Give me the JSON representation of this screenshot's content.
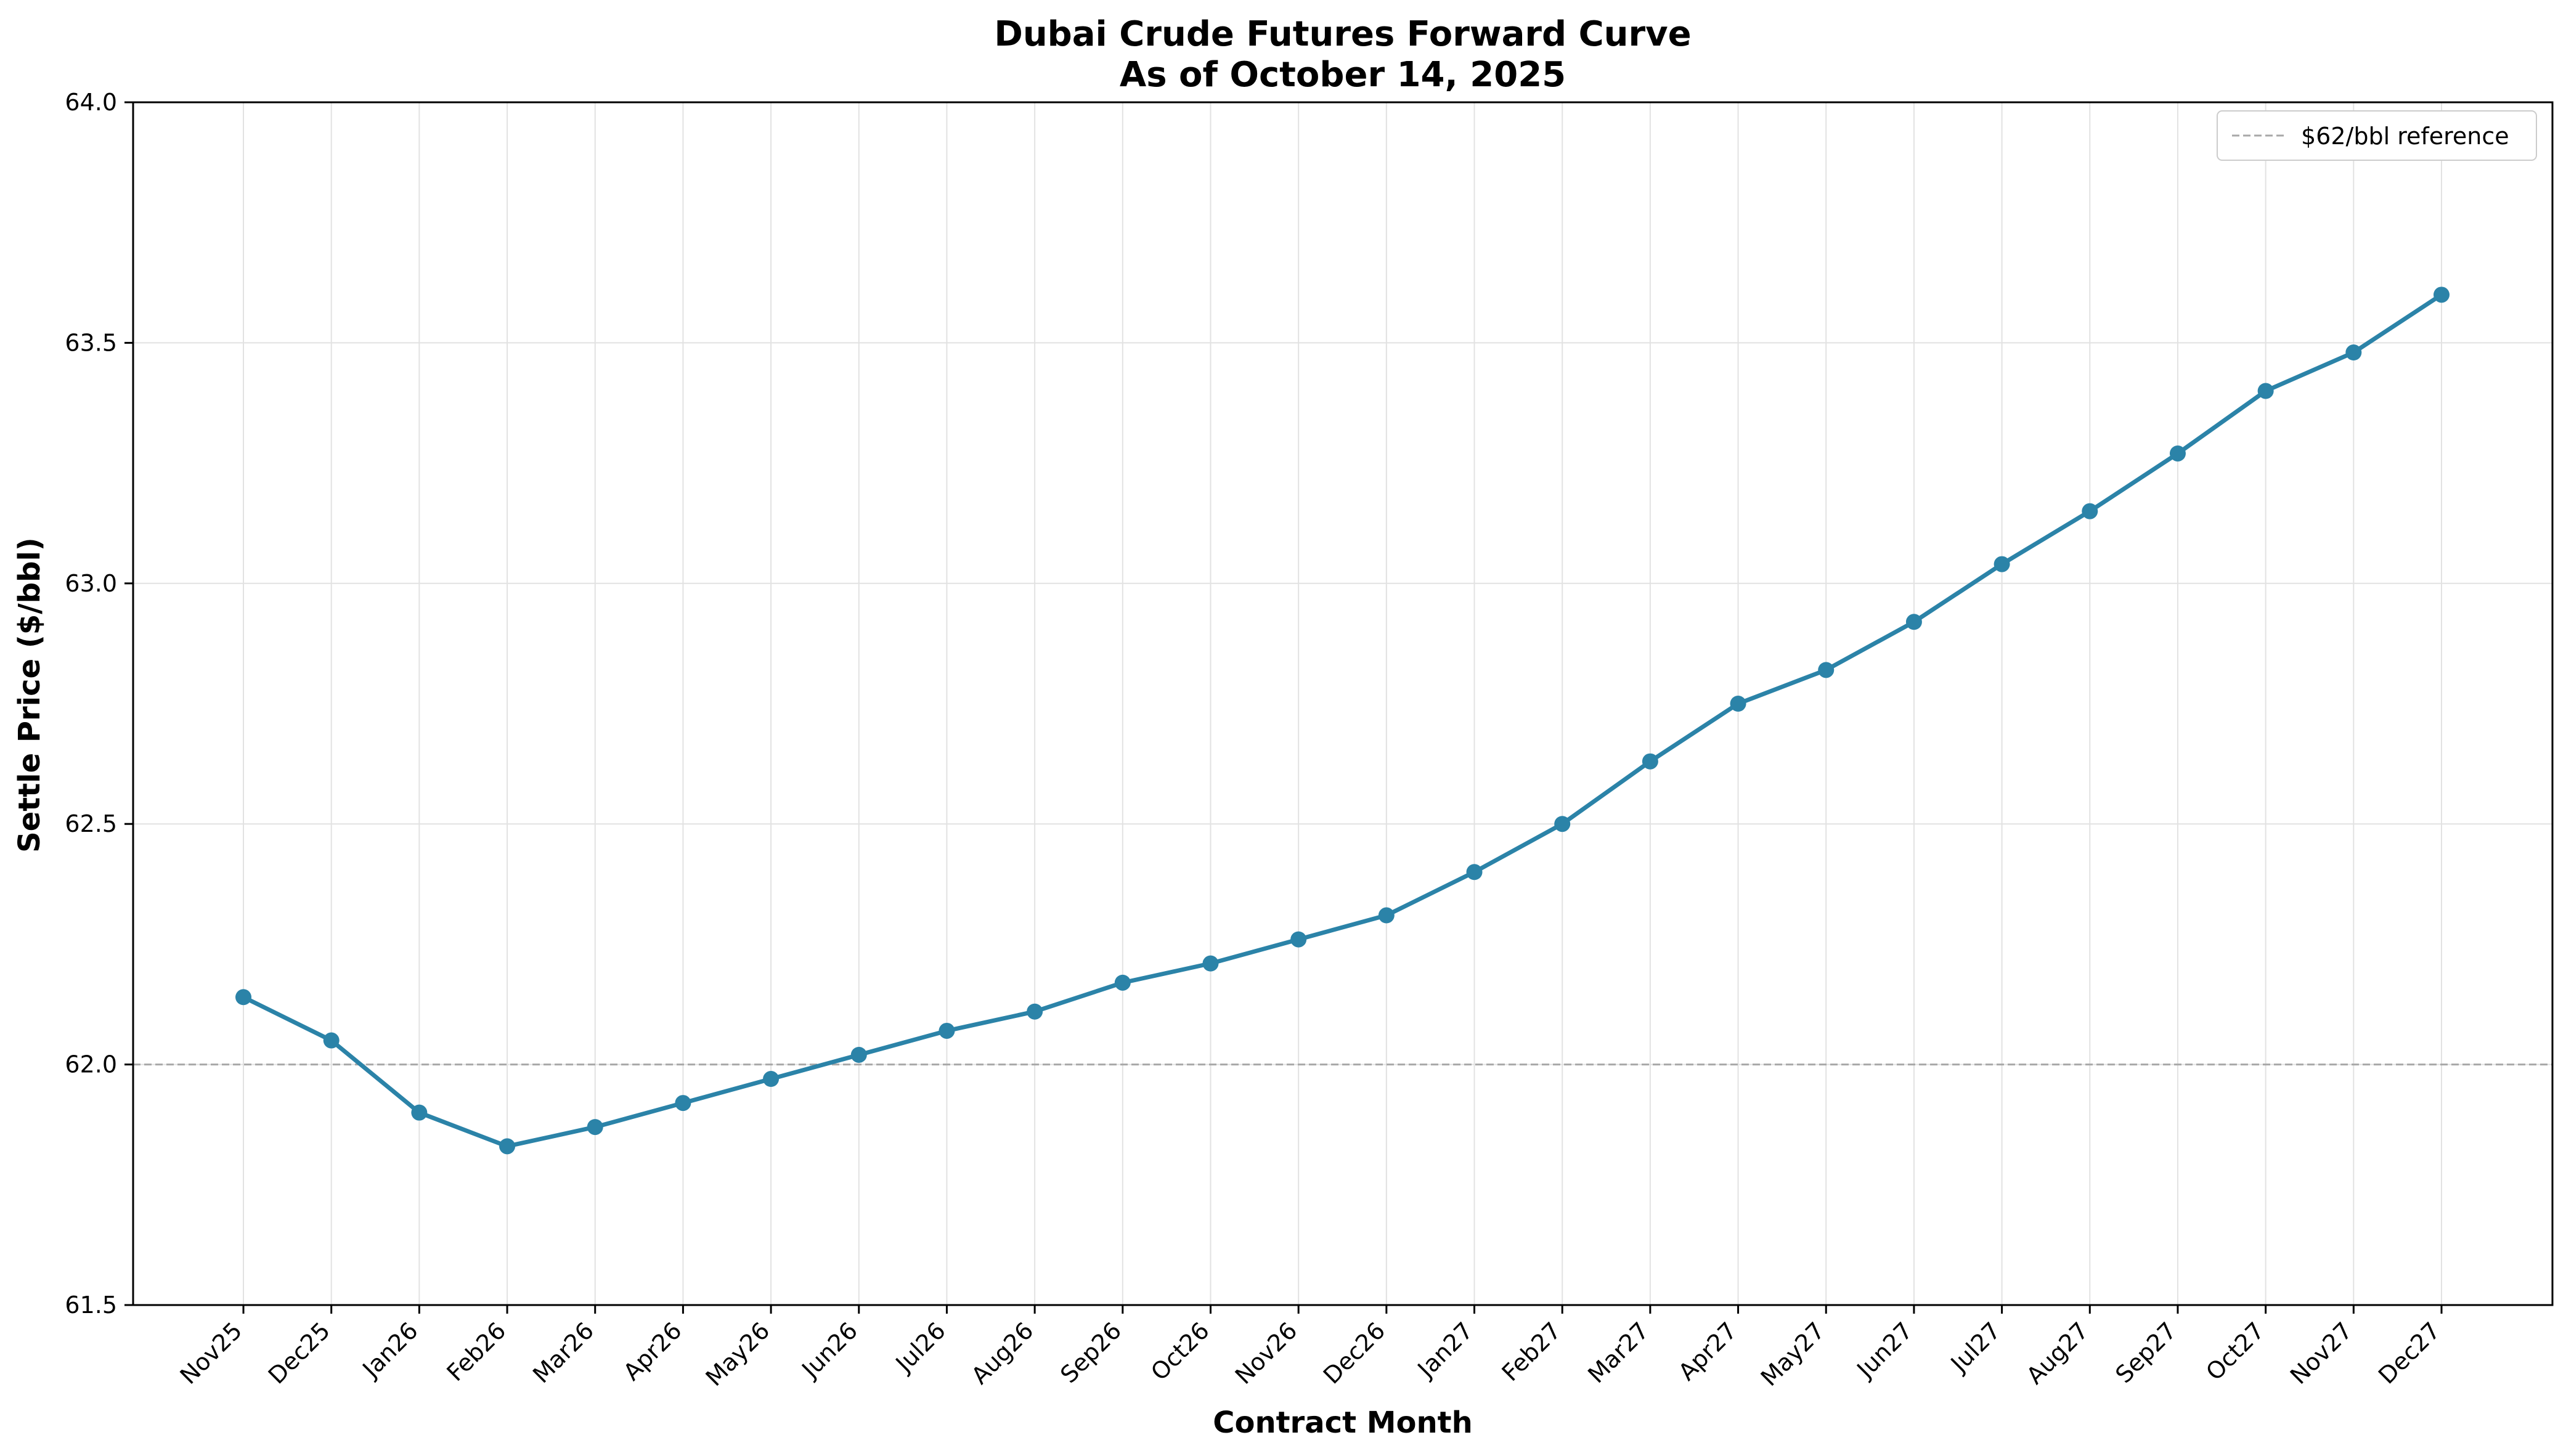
{
  "chart_data": {
    "type": "line",
    "title": "Dubai Crude Futures Forward Curve",
    "subtitle": "As of October 14, 2025",
    "xlabel": "Contract Month",
    "ylabel": "Settle Price ($/bbl)",
    "ylim": [
      61.5,
      64.0
    ],
    "yticks": [
      "61.5",
      "62.0",
      "62.5",
      "63.0",
      "63.5",
      "64.0"
    ],
    "grid": true,
    "legend_position": "top-right",
    "categories": [
      "Nov25",
      "Dec25",
      "Jan26",
      "Feb26",
      "Mar26",
      "Apr26",
      "May26",
      "Jun26",
      "Jul26",
      "Aug26",
      "Sep26",
      "Oct26",
      "Nov26",
      "Dec26",
      "Jan27",
      "Feb27",
      "Mar27",
      "Apr27",
      "May27",
      "Jun27",
      "Jul27",
      "Aug27",
      "Sep27",
      "Oct27",
      "Nov27",
      "Dec27"
    ],
    "series": [
      {
        "values": [
          62.14,
          62.05,
          61.9,
          61.83,
          61.87,
          61.92,
          61.97,
          62.02,
          62.07,
          62.11,
          62.17,
          62.21,
          62.26,
          62.31,
          62.4,
          62.5,
          62.63,
          62.75,
          62.82,
          62.92,
          63.04,
          63.15,
          63.27,
          63.4,
          63.48,
          63.6
        ],
        "color": "#2b83a8"
      }
    ],
    "reference_line": {
      "y": 62.0,
      "label": "$62/bbl reference",
      "color": "#a8a8a8",
      "style": "dashed"
    }
  }
}
